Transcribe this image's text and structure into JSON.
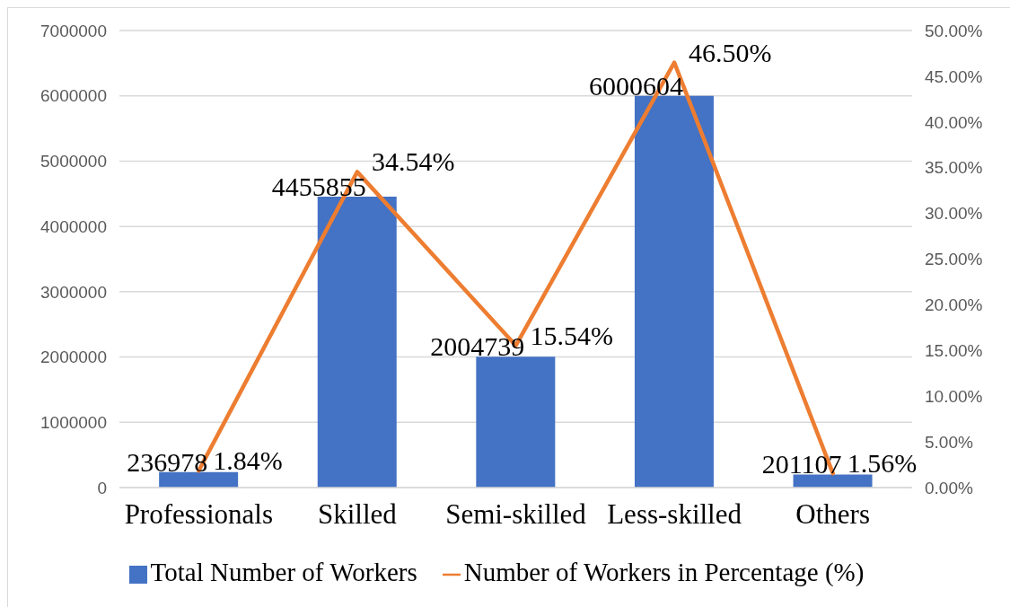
{
  "chart_data": {
    "type": "bar",
    "categories": [
      "Professionals",
      "Skilled",
      "Semi-skilled",
      "Less-skilled",
      "Others"
    ],
    "series": [
      {
        "name": "Total Number of Workers",
        "color": "#4472c4",
        "values": [
          236978,
          4455855,
          2004739,
          6000604,
          201107
        ],
        "value_labels": [
          "236978",
          "4455855",
          "2004739",
          "6000604",
          "201107"
        ]
      },
      {
        "name": "Number of Workers in Percentage (%)",
        "type": "line",
        "axis": "y2",
        "color": "#ed7d31",
        "values": [
          1.84,
          34.54,
          15.54,
          46.5,
          1.56
        ],
        "value_labels": [
          "1.84%",
          "34.54%",
          "15.54%",
          "46.50%",
          "1.56%"
        ]
      }
    ],
    "ylim": [
      0,
      7000000
    ],
    "yticks": [
      0,
      1000000,
      2000000,
      3000000,
      4000000,
      5000000,
      6000000,
      7000000
    ],
    "y2lim": [
      0,
      50
    ],
    "y2ticks": [
      {
        "value": 0,
        "label": "0.00%"
      },
      {
        "value": 5,
        "label": "5.00%"
      },
      {
        "value": 10,
        "label": "10.00%"
      },
      {
        "value": 15,
        "label": "15.00%"
      },
      {
        "value": 20,
        "label": "20.00%"
      },
      {
        "value": 25,
        "label": "25.00%"
      },
      {
        "value": 30,
        "label": "30.00%"
      },
      {
        "value": 35,
        "label": "35.00%"
      },
      {
        "value": 40,
        "label": "40.00%"
      },
      {
        "value": 45,
        "label": "45.00%"
      },
      {
        "value": 50,
        "label": "50.00%"
      }
    ],
    "grid": "y",
    "legend": "bottom",
    "marker": "none"
  }
}
